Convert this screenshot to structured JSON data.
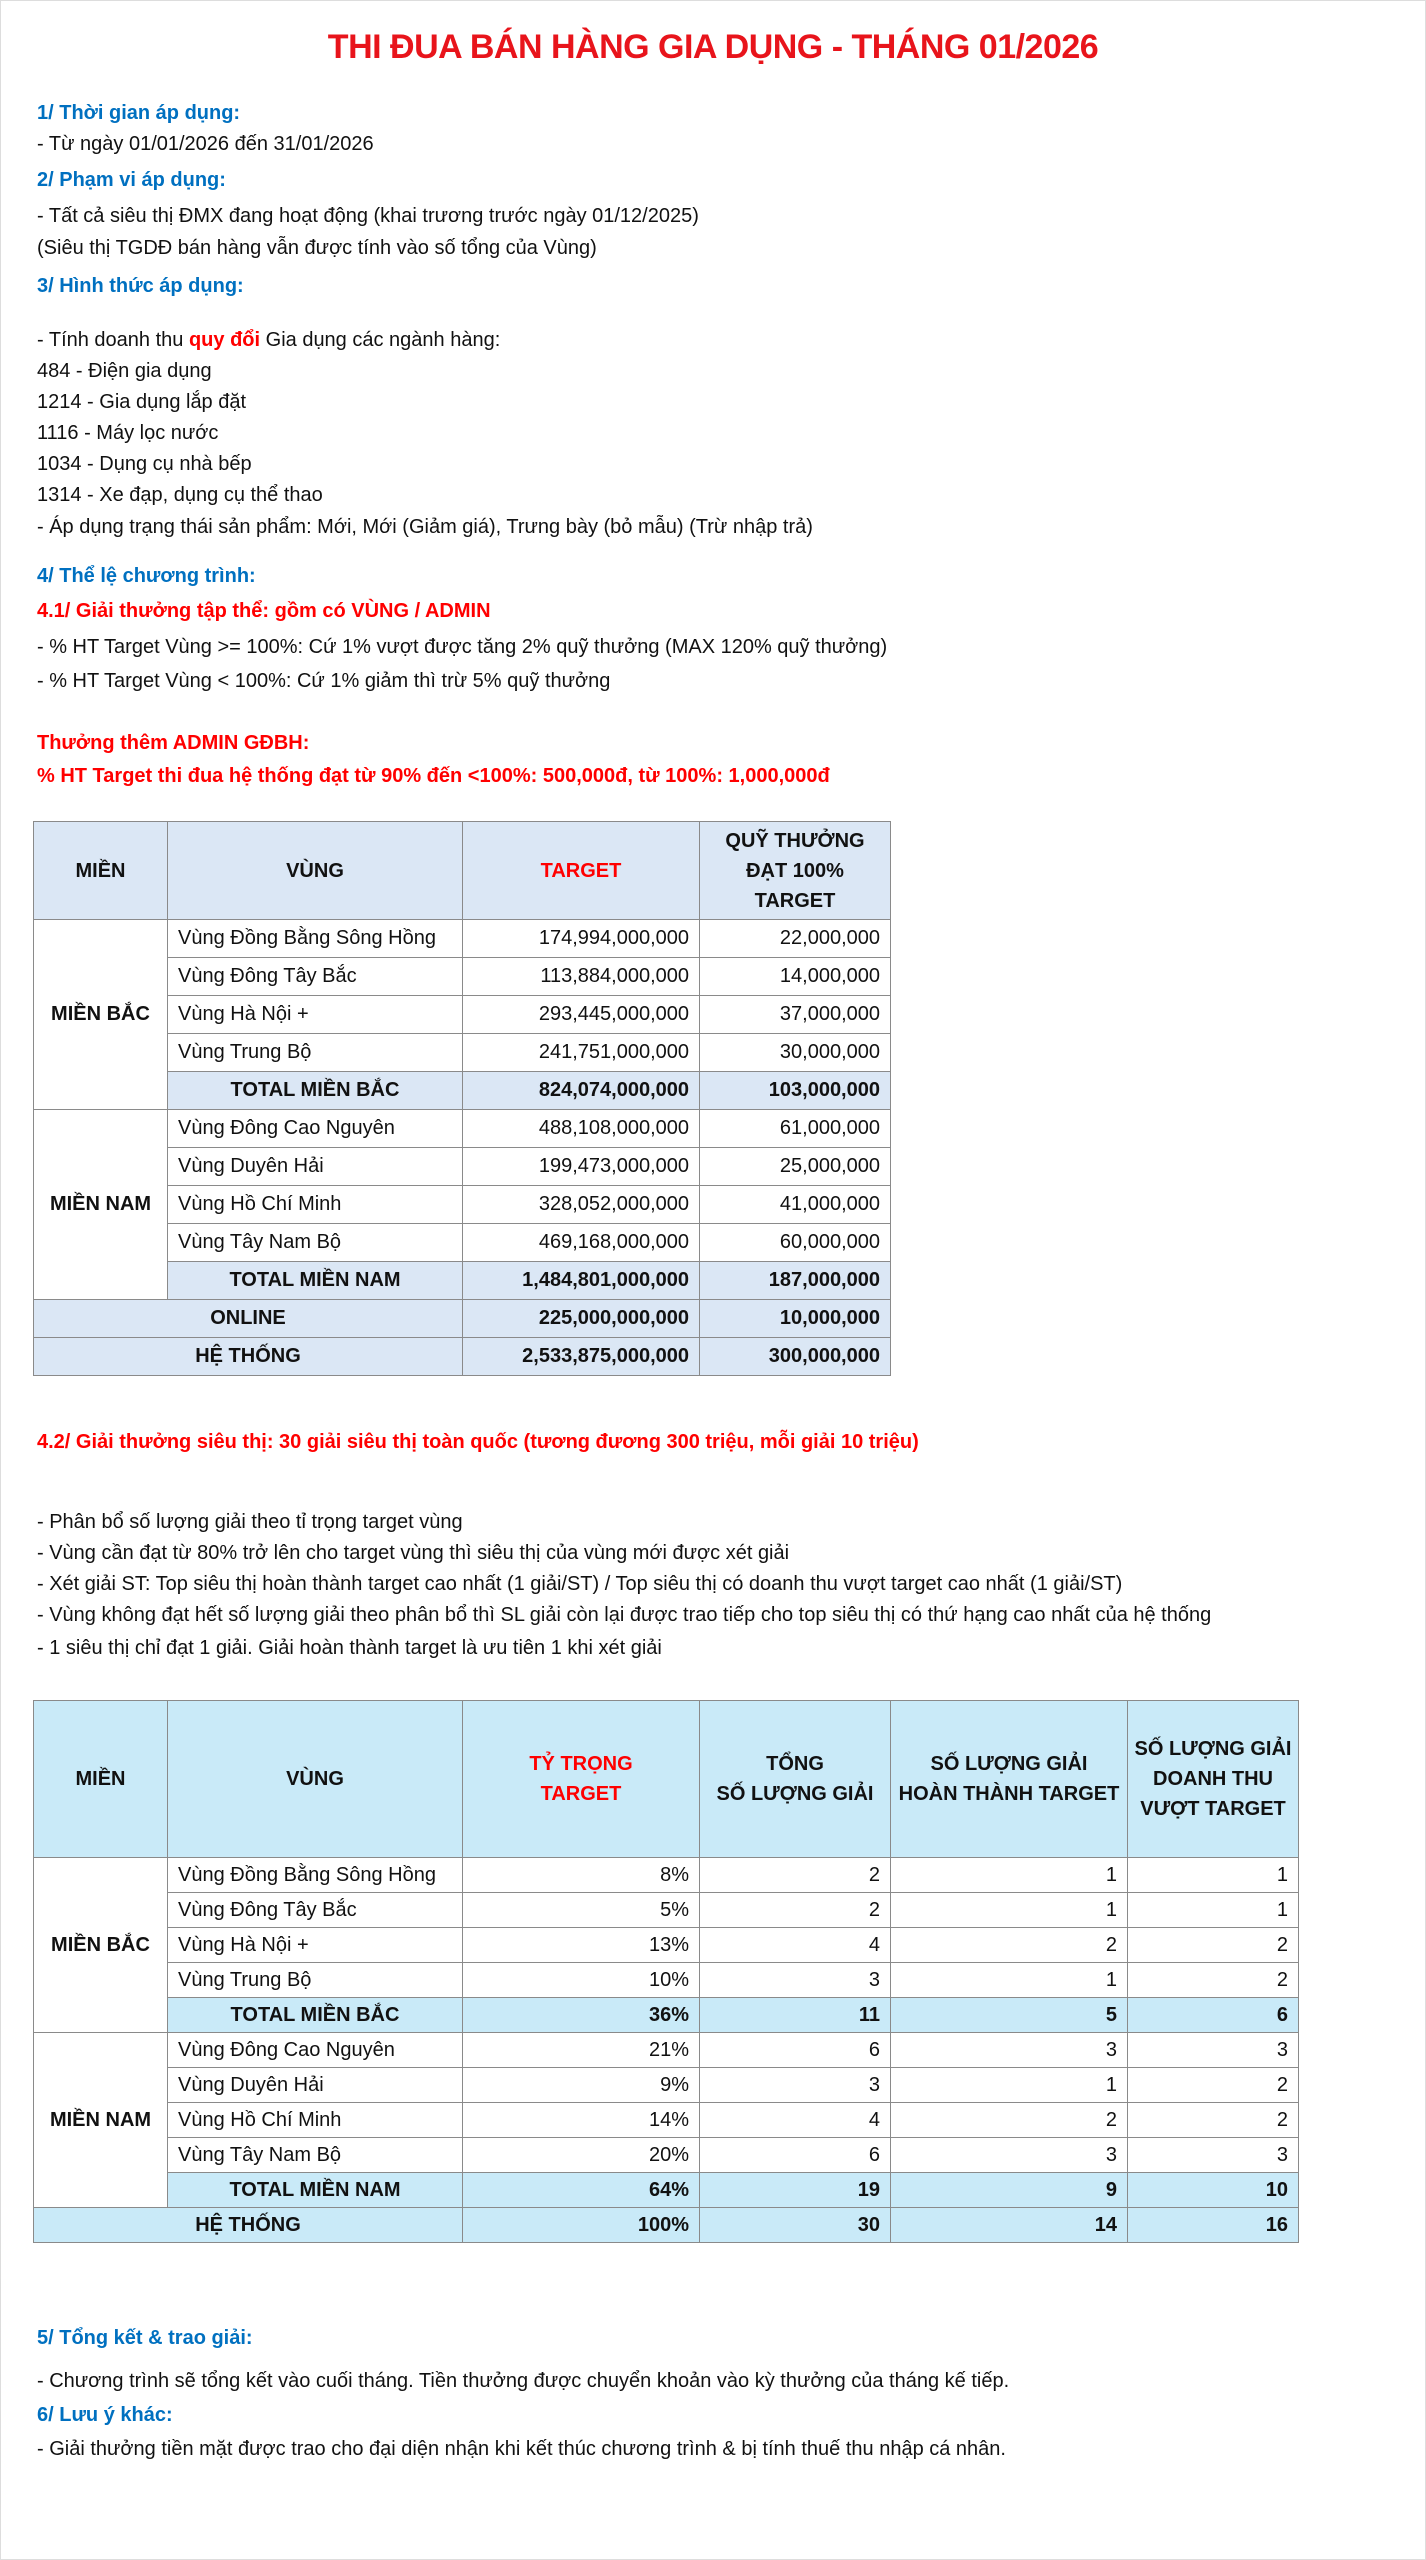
{
  "title": "THI ĐUA BÁN HÀNG GIA DỤNG - THÁNG 01/2026",
  "s1": {
    "heading": "1/ Thời gian áp dụng:",
    "line": "- Từ ngày 01/01/2026 đến 31/01/2026"
  },
  "s2": {
    "heading": "2/ Phạm vi áp dụng:",
    "line1": "- Tất cả siêu thị ĐMX đang hoạt động (khai trương trước ngày 01/12/2025)",
    "line2": "(Siêu thị TGDĐ bán hàng vẫn được tính vào số tổng của Vùng)"
  },
  "s3": {
    "heading": "3/ Hình thức áp dụng:",
    "intro_a": "- Tính doanh thu ",
    "intro_b": "quy đổi",
    "intro_c": " Gia dụng các ngành hàng:",
    "items": [
      "484 - Điện gia dụng",
      "1214 - Gia dụng lắp đặt",
      "1116 - Máy lọc nước",
      "1034 - Dụng cụ nhà bếp",
      "1314 - Xe đạp, dụng cụ thể thao"
    ],
    "status": "- Áp dụng trạng thái sản phẩm: Mới, Mới (Giảm giá), Trưng bày (bỏ mẫu) (Trừ nhập trả)"
  },
  "s4": {
    "heading": "4/ Thể lệ chương trình:",
    "s41": "4.1/ Giải thưởng tập thể: gồm có VÙNG / ADMIN",
    "rule1": "- % HT Target Vùng >= 100%: Cứ 1% vượt được tăng 2% quỹ thưởng (MAX 120% quỹ thưởng)",
    "rule2": "- % HT Target Vùng < 100%: Cứ 1% giảm thì trừ 5% quỹ thưởng",
    "bonus_title": "Thưởng thêm ADMIN GĐBH:",
    "bonus_line": "% HT Target thi đua hệ thống đạt từ 90% đến <100%: 500,000đ, từ 100%: 1,000,000đ",
    "s42": "4.2/ Giải thưởng siêu thị: 30 giải siêu thị toàn quốc (tương đương 300 triệu, mỗi giải 10 triệu)",
    "rules42": [
      "- Phân bổ số lượng giải theo tỉ trọng target vùng",
      "- Vùng cần đạt từ 80% trở lên cho target vùng thì siêu thị của vùng mới được xét giải",
      "- Xét giải ST: Top siêu thị hoàn thành target cao nhất (1 giải/ST) / Top siêu thị có doanh thu vượt target cao nhất (1 giải/ST)",
      "- Vùng không đạt hết số lượng giải theo phân bổ thì SL giải còn lại được trao tiếp cho top siêu thị có thứ hạng cao nhất của hệ thống",
      "- 1 siêu thị chỉ đạt 1 giải. Giải hoàn thành target là ưu tiên 1 khi xét giải"
    ]
  },
  "table1": {
    "headers": [
      "MIỀN",
      "VÙNG",
      "TARGET",
      "QUỸ THƯỞNG",
      "ĐẠT 100%",
      "TARGET"
    ],
    "bac": "MIỀN BẮC",
    "nam": "MIỀN NAM",
    "rows_bac": [
      [
        "Vùng Đồng Bằng Sông Hồng",
        "174,994,000,000",
        "22,000,000"
      ],
      [
        "Vùng Đông Tây Bắc",
        "113,884,000,000",
        "14,000,000"
      ],
      [
        "Vùng Hà Nội +",
        "293,445,000,000",
        "37,000,000"
      ],
      [
        "Vùng Trung Bộ",
        "241,751,000,000",
        "30,000,000"
      ]
    ],
    "total_bac": [
      "TOTAL MIỀN BẮC",
      "824,074,000,000",
      "103,000,000"
    ],
    "rows_nam": [
      [
        "Vùng Đông Cao Nguyên",
        "488,108,000,000",
        "61,000,000"
      ],
      [
        "Vùng Duyên Hải",
        "199,473,000,000",
        "25,000,000"
      ],
      [
        "Vùng Hồ Chí Minh",
        "328,052,000,000",
        "41,000,000"
      ],
      [
        "Vùng Tây Nam Bộ",
        "469,168,000,000",
        "60,000,000"
      ]
    ],
    "total_nam": [
      "TOTAL MIỀN NAM",
      "1,484,801,000,000",
      "187,000,000"
    ],
    "online": [
      "ONLINE",
      "225,000,000,000",
      "10,000,000"
    ],
    "he_thong": [
      "HỆ THỐNG",
      "2,533,875,000,000",
      "300,000,000"
    ]
  },
  "table2": {
    "headers": {
      "mien": "MIỀN",
      "vung": "VÙNG",
      "ty_trong_1": "TỶ TRỌNG",
      "ty_trong_2": "TARGET",
      "tong_1": "TỔNG",
      "tong_2": "SỐ LƯỢNG GIẢI",
      "ht_1": "SỐ LƯỢNG GIẢI",
      "ht_2": "HOÀN THÀNH TARGET",
      "vt_1": "SỐ LƯỢNG GIẢI",
      "vt_2": "DOANH THU",
      "vt_3": "VƯỢT TARGET"
    },
    "bac": "MIỀN BẮC",
    "nam": "MIỀN NAM",
    "rows_bac": [
      [
        "Vùng Đồng Bằng Sông Hồng",
        "8%",
        "2",
        "1",
        "1"
      ],
      [
        "Vùng Đông Tây Bắc",
        "5%",
        "2",
        "1",
        "1"
      ],
      [
        "Vùng Hà Nội +",
        "13%",
        "4",
        "2",
        "2"
      ],
      [
        "Vùng Trung Bộ",
        "10%",
        "3",
        "1",
        "2"
      ]
    ],
    "total_bac": [
      "TOTAL MIỀN BẮC",
      "36%",
      "11",
      "5",
      "6"
    ],
    "rows_nam": [
      [
        "Vùng Đông Cao Nguyên",
        "21%",
        "6",
        "3",
        "3"
      ],
      [
        "Vùng Duyên Hải",
        "9%",
        "3",
        "1",
        "2"
      ],
      [
        "Vùng Hồ Chí Minh",
        "14%",
        "4",
        "2",
        "2"
      ],
      [
        "Vùng Tây Nam Bộ",
        "20%",
        "6",
        "3",
        "3"
      ]
    ],
    "total_nam": [
      "TOTAL MIỀN NAM",
      "64%",
      "19",
      "9",
      "10"
    ],
    "he_thong": [
      "HỆ THỐNG",
      "100%",
      "30",
      "14",
      "16"
    ]
  },
  "s5": {
    "heading": "5/ Tổng kết & trao giải:",
    "line": "- Chương trình sẽ tổng kết vào cuối tháng. Tiền thưởng được chuyển khoản vào kỳ thưởng của tháng kế tiếp."
  },
  "s6": {
    "heading": "6/ Lưu ý khác:",
    "line": "- Giải thưởng tiền mặt được trao cho đại diện nhận khi kết thúc chương trình & bị tính thuế thu nhập cá nhân."
  },
  "colors": {
    "title": "#E8141B",
    "heading_blue": "#0070C0",
    "highlight_red": "#FF0000",
    "table1_fill": "#DBE7F5",
    "table2_fill": "#C9EAF8"
  }
}
